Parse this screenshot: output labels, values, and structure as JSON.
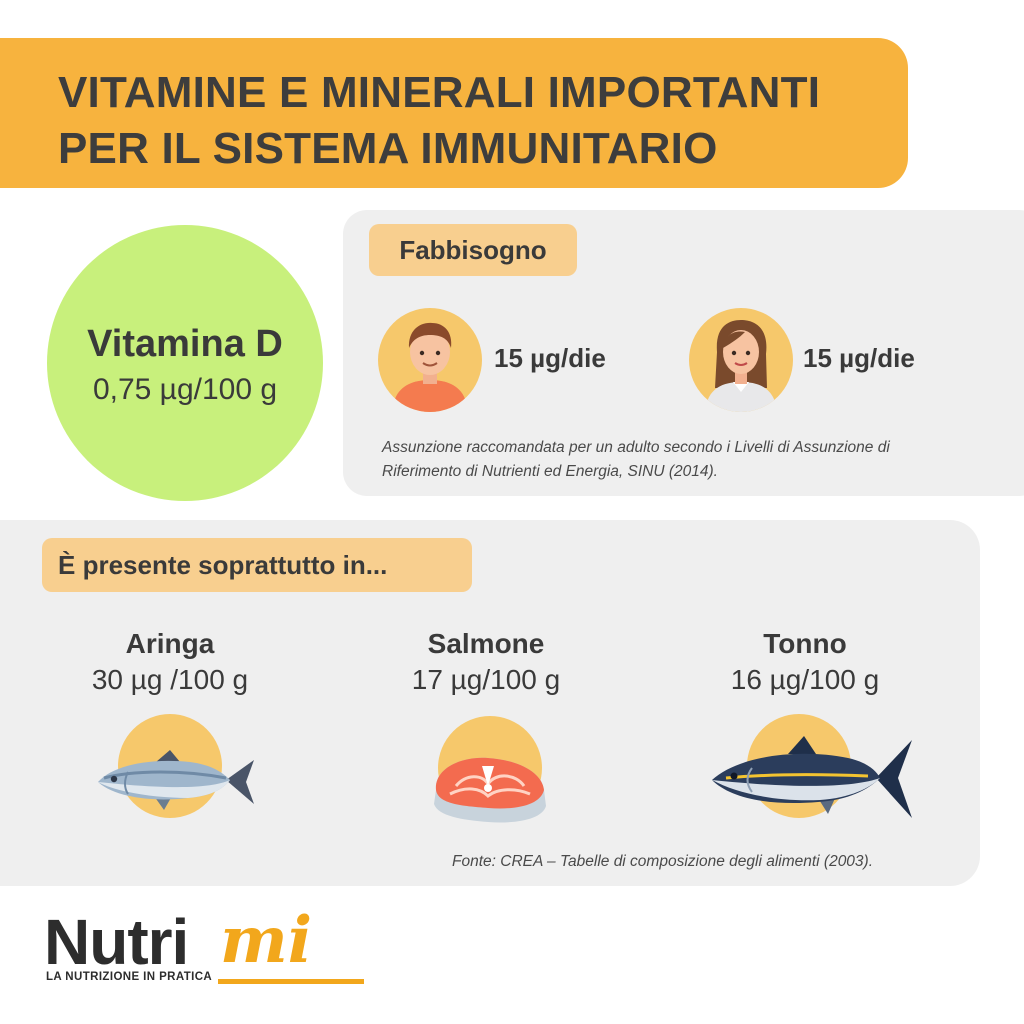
{
  "header": {
    "line1": "VITAMINE E MINERALI IMPORTANTI",
    "line2": "PER IL SISTEMA IMMUNITARIO"
  },
  "vitamin": {
    "name": "Vitamina D",
    "value": "0,75 µg/100 g"
  },
  "requirement": {
    "label": "Fabbisogno",
    "man_value": "15 µg/die",
    "woman_value": "15 µg/die",
    "note": "Assunzione raccomandata per un adulto secondo i Livelli di Assunzione di Riferimento di Nutrienti ed Energia, SINU (2014)."
  },
  "sources": {
    "label": "È presente soprattutto in...",
    "items": [
      {
        "name": "Aringa",
        "value": "30 µg /100 g",
        "icon": "herring-icon"
      },
      {
        "name": "Salmone",
        "value": "17 µg/100 g",
        "icon": "salmon-steak-icon"
      },
      {
        "name": "Tonno",
        "value": "16 µg/100 g",
        "icon": "tuna-icon"
      }
    ],
    "note": "Fonte: CREA – Tabelle di composizione degli alimenti (2003)."
  },
  "logo": {
    "main": "Nutri",
    "accent": "mi",
    "tagline": "LA NUTRIZIONE IN PRATICA"
  },
  "colors": {
    "banner": "#f7b33e",
    "vitamin_circle": "#c8f07c",
    "label_bg": "#f8cf8f",
    "panel_bg": "#efefef",
    "icon_circle": "#f6c86b",
    "logo_accent": "#f2a71c"
  }
}
